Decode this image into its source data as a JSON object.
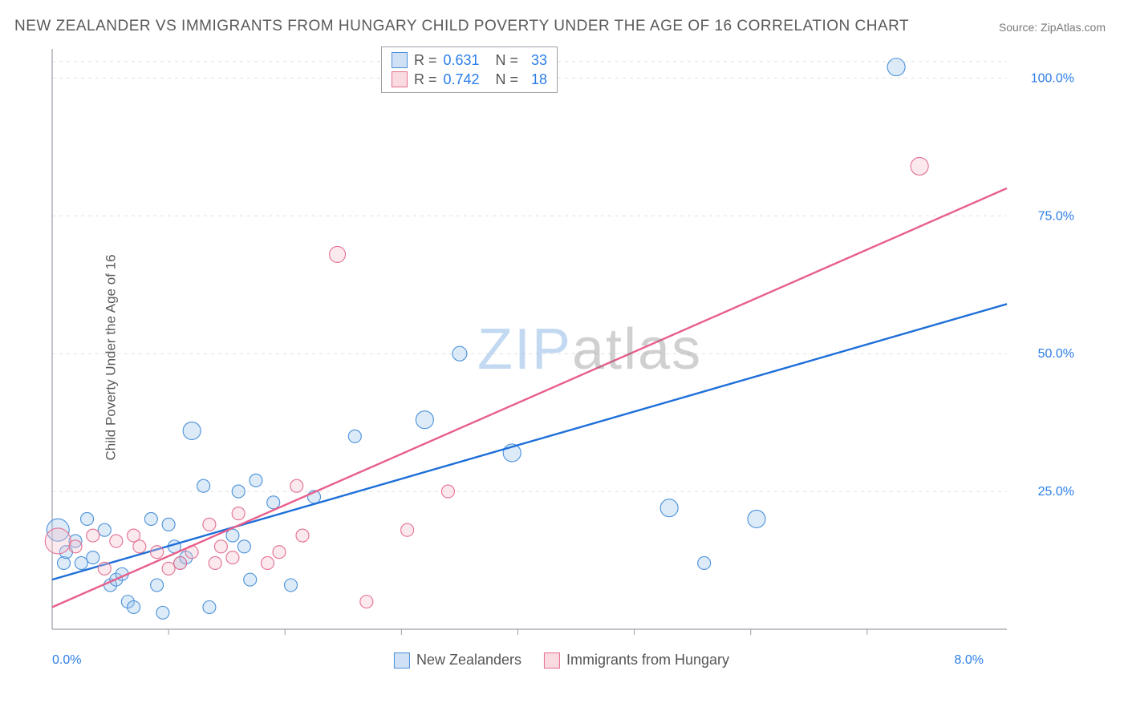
{
  "title": "NEW ZEALANDER VS IMMIGRANTS FROM HUNGARY CHILD POVERTY UNDER THE AGE OF 16 CORRELATION CHART",
  "source_label": "Source: ZipAtlas.com",
  "ylabel": "Child Poverty Under the Age of 16",
  "watermark": {
    "left": "ZIP",
    "right": "atlas"
  },
  "chart": {
    "type": "scatter-with-regression",
    "background_color": "#ffffff",
    "grid_color": "#e0e0e0",
    "axis_color": "#9aa0a6",
    "tick_color": "#9aa0a6",
    "label_color": "#2b7de9",
    "title_color": "#5a5a5a",
    "xlim": [
      0.0,
      8.2
    ],
    "ylim": [
      0.0,
      105.0
    ],
    "x_tick_labels": {
      "0.0": "0.0%",
      "8.0": "8.0%"
    },
    "x_minor_ticks_at": [
      1,
      2,
      3,
      4,
      5,
      6,
      7
    ],
    "y_tick_labels": {
      "25": "25.0%",
      "50": "50.0%",
      "75": "75.0%",
      "100": "100.0%"
    },
    "y_grid_at": [
      25,
      50,
      75,
      100,
      103
    ],
    "marker_radius": 8,
    "marker_opacity": 0.35,
    "series": [
      {
        "key": "nz",
        "name": "New Zealanders",
        "color_fill": "#9ec5eb",
        "color_stroke": "#4a90d9",
        "line_color": "#1e6fd9",
        "line_width": 2.4,
        "R": 0.631,
        "N": 33,
        "regression": {
          "x1": 0.0,
          "y1": 9.0,
          "x2": 8.2,
          "y2": 59.0
        },
        "points": [
          [
            0.05,
            18,
            14
          ],
          [
            0.1,
            12
          ],
          [
            0.12,
            14
          ],
          [
            0.2,
            16
          ],
          [
            0.25,
            12
          ],
          [
            0.3,
            20
          ],
          [
            0.35,
            13
          ],
          [
            0.45,
            18
          ],
          [
            0.5,
            8
          ],
          [
            0.55,
            9
          ],
          [
            0.6,
            10
          ],
          [
            0.65,
            5
          ],
          [
            0.7,
            4
          ],
          [
            0.85,
            20
          ],
          [
            0.9,
            8
          ],
          [
            0.95,
            3
          ],
          [
            1.0,
            19
          ],
          [
            1.05,
            15
          ],
          [
            1.1,
            12
          ],
          [
            1.15,
            13
          ],
          [
            1.2,
            36,
            11
          ],
          [
            1.3,
            26
          ],
          [
            1.35,
            4
          ],
          [
            1.55,
            17
          ],
          [
            1.6,
            25
          ],
          [
            1.65,
            15
          ],
          [
            1.7,
            9
          ],
          [
            1.75,
            27
          ],
          [
            1.9,
            23
          ],
          [
            2.05,
            8
          ],
          [
            2.25,
            24
          ],
          [
            2.6,
            35
          ],
          [
            3.2,
            38,
            11
          ],
          [
            3.5,
            50,
            9
          ],
          [
            3.95,
            32,
            11
          ],
          [
            5.3,
            22,
            11
          ],
          [
            5.6,
            12
          ],
          [
            6.05,
            20,
            11
          ],
          [
            7.25,
            102,
            11
          ]
        ]
      },
      {
        "key": "hu",
        "name": "Immigrants from Hungary",
        "color_fill": "#f4c1cd",
        "color_stroke": "#e46f91",
        "line_color": "#e85f8a",
        "line_width": 2.4,
        "R": 0.742,
        "N": 18,
        "regression": {
          "x1": 0.0,
          "y1": 4.0,
          "x2": 8.2,
          "y2": 80.0
        },
        "points": [
          [
            0.05,
            16,
            16
          ],
          [
            0.2,
            15
          ],
          [
            0.35,
            17
          ],
          [
            0.45,
            11
          ],
          [
            0.55,
            16
          ],
          [
            0.7,
            17
          ],
          [
            0.75,
            15
          ],
          [
            0.9,
            14
          ],
          [
            1.0,
            11
          ],
          [
            1.1,
            12
          ],
          [
            1.2,
            14
          ],
          [
            1.35,
            19
          ],
          [
            1.4,
            12
          ],
          [
            1.45,
            15
          ],
          [
            1.55,
            13
          ],
          [
            1.6,
            21
          ],
          [
            1.85,
            12
          ],
          [
            1.95,
            14
          ],
          [
            2.1,
            26
          ],
          [
            2.15,
            17
          ],
          [
            2.45,
            68,
            10
          ],
          [
            2.7,
            5
          ],
          [
            3.05,
            18
          ],
          [
            3.4,
            25
          ],
          [
            7.45,
            84,
            11
          ]
        ]
      }
    ],
    "legend_top": {
      "rows": [
        {
          "swatch": "blue",
          "r_label": "R =",
          "r_value": "0.631",
          "n_label": "N =",
          "n_value": "33"
        },
        {
          "swatch": "pink",
          "r_label": "R =",
          "r_value": "0.742",
          "n_label": "N =",
          "n_value": "18"
        }
      ]
    },
    "legend_bottom": [
      {
        "swatch": "blue",
        "label": "New Zealanders"
      },
      {
        "swatch": "pink",
        "label": "Immigrants from Hungary"
      }
    ]
  }
}
